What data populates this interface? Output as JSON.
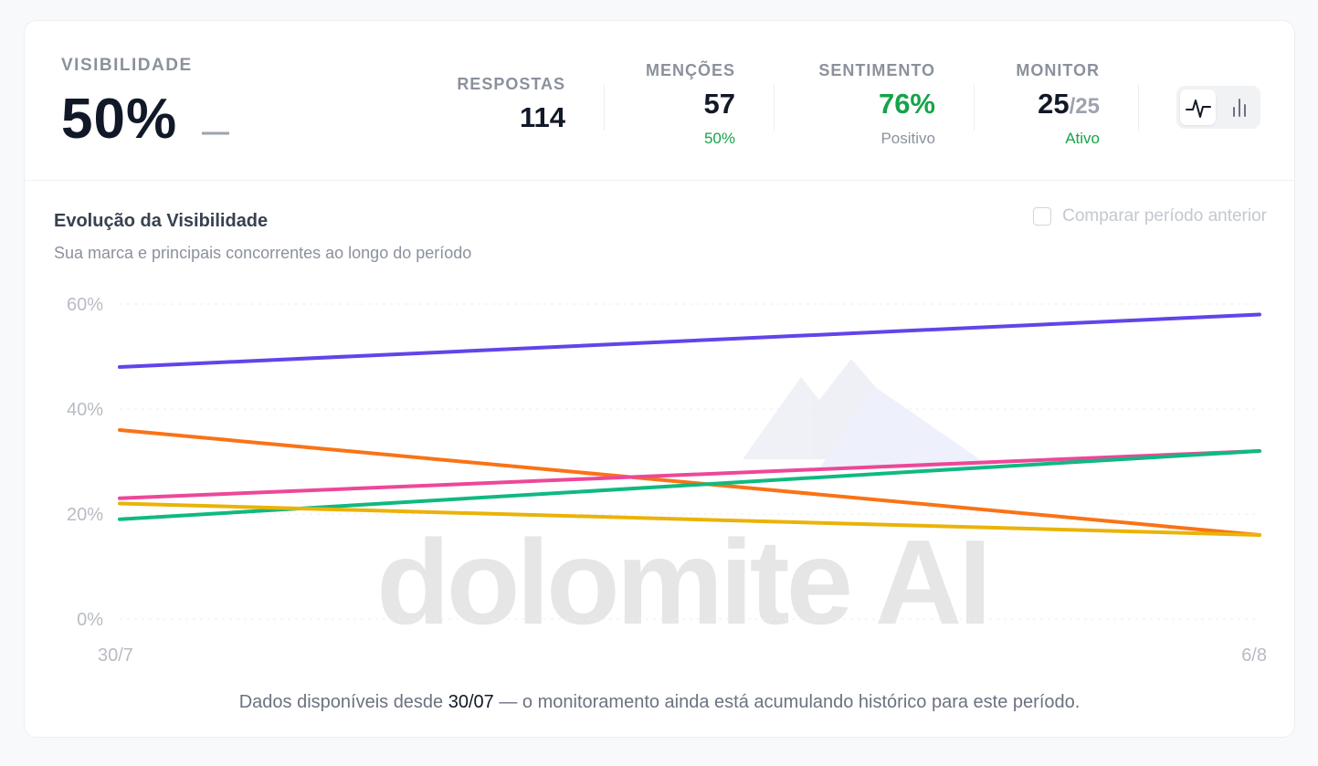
{
  "header": {
    "visibility": {
      "label": "VISIBILIDADE",
      "value": "50%",
      "trend": "—"
    },
    "stats": {
      "respostas": {
        "label": "RESPOSTAS",
        "value": "114"
      },
      "mencoes": {
        "label": "MENÇÕES",
        "value": "57",
        "sub": "50%"
      },
      "sentimento": {
        "label": "SENTIMENTO",
        "value": "76%",
        "sub": "Positivo"
      },
      "monitor": {
        "label": "MONITOR",
        "value": "25",
        "denominator": "/25",
        "sub": "Ativo"
      }
    },
    "view_toggle": {
      "line_icon": "line-chart-icon",
      "bar_icon": "bar-chart-icon",
      "selected": "line"
    }
  },
  "chart_section": {
    "title": "Evolução da Visibilidade",
    "subtitle": "Sua marca e principais concorrentes ao longo do período",
    "compare_checkbox": {
      "label": "Comparar período anterior",
      "checked": false
    },
    "watermark": "dolomite AI",
    "footnote": {
      "prefix": "Dados disponíveis desde ",
      "date": "30/07",
      "suffix": " — o monitoramento ainda está acumulando histórico para este período."
    }
  },
  "colors": {
    "accent_green": "#16a34a",
    "series": [
      "#6344e9",
      "#f97316",
      "#ec4899",
      "#10b981",
      "#eab308"
    ]
  },
  "chart_data": {
    "type": "line",
    "x": [
      "30/7",
      "6/8"
    ],
    "y_ticks": [
      "60%",
      "40%",
      "20%",
      "0%"
    ],
    "ylim": [
      0,
      60
    ],
    "grid": true,
    "series": [
      {
        "values": [
          48,
          58
        ]
      },
      {
        "values": [
          36,
          16
        ]
      },
      {
        "values": [
          23,
          32
        ]
      },
      {
        "values": [
          19,
          32
        ]
      },
      {
        "values": [
          22,
          16
        ]
      }
    ]
  }
}
